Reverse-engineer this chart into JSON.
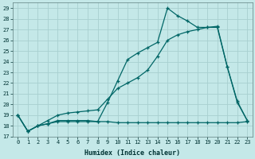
{
  "xlabel": "Humidex (Indice chaleur)",
  "bg_color": "#c4e8e8",
  "grid_color": "#a8d0d0",
  "line_color": "#006666",
  "xlim": [
    -0.5,
    23.5
  ],
  "ylim": [
    17,
    29.5
  ],
  "yticks": [
    17,
    18,
    19,
    20,
    21,
    22,
    23,
    24,
    25,
    26,
    27,
    28,
    29
  ],
  "xticks": [
    0,
    1,
    2,
    3,
    4,
    5,
    6,
    7,
    8,
    9,
    10,
    11,
    12,
    13,
    14,
    15,
    16,
    17,
    18,
    19,
    20,
    21,
    22,
    23
  ],
  "line1_x": [
    0,
    1,
    2,
    3,
    4,
    5,
    6,
    7,
    8,
    9,
    10,
    11,
    12,
    13,
    14,
    15,
    16,
    17,
    18,
    19,
    20,
    21,
    22,
    23
  ],
  "line1_y": [
    19.0,
    17.5,
    18.0,
    18.2,
    18.4,
    18.4,
    18.4,
    18.4,
    18.4,
    18.4,
    18.3,
    18.3,
    18.3,
    18.3,
    18.3,
    18.3,
    18.3,
    18.3,
    18.3,
    18.3,
    18.3,
    18.3,
    18.3,
    18.4
  ],
  "line2_x": [
    0,
    1,
    2,
    3,
    4,
    5,
    6,
    7,
    8,
    9,
    10,
    11,
    12,
    13,
    14,
    15,
    16,
    17,
    18,
    19,
    20,
    21,
    22,
    23
  ],
  "line2_y": [
    19.0,
    17.5,
    18.0,
    18.5,
    19.0,
    19.2,
    19.3,
    19.4,
    19.5,
    20.5,
    21.5,
    22.0,
    22.5,
    23.2,
    24.5,
    26.0,
    26.5,
    26.8,
    27.0,
    27.2,
    27.3,
    23.5,
    20.3,
    18.5
  ],
  "line3_x": [
    0,
    1,
    2,
    3,
    4,
    5,
    6,
    7,
    8,
    9,
    10,
    11,
    12,
    13,
    14,
    15,
    16,
    17,
    18,
    19,
    20,
    21,
    22,
    23
  ],
  "line3_y": [
    19.0,
    17.5,
    18.0,
    18.2,
    18.5,
    18.5,
    18.5,
    18.5,
    18.4,
    20.2,
    22.2,
    24.2,
    24.8,
    25.3,
    25.8,
    29.0,
    28.3,
    27.8,
    27.2,
    27.2,
    27.2,
    23.5,
    20.2,
    18.5
  ]
}
